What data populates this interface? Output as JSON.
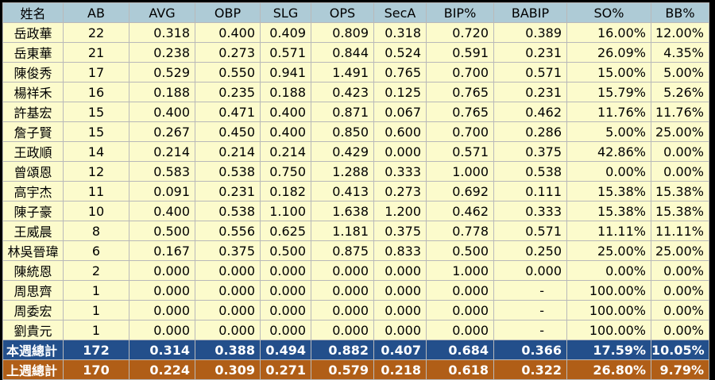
{
  "headers": [
    "姓名",
    "AB",
    "AVG",
    "OBP",
    "SLG",
    "OPS",
    "SecA",
    "BIP%",
    "BABIP",
    "SO%",
    "BB%"
  ],
  "rows": [
    [
      "岳政華",
      "22",
      "0.318",
      "0.400",
      "0.409",
      "0.809",
      "0.318",
      "0.720",
      "0.389",
      "16.00%",
      "12.00%"
    ],
    [
      "岳東華",
      "21",
      "0.238",
      "0.273",
      "0.571",
      "0.844",
      "0.524",
      "0.591",
      "0.231",
      "26.09%",
      "4.35%"
    ],
    [
      "陳俊秀",
      "17",
      "0.529",
      "0.550",
      "0.941",
      "1.491",
      "0.765",
      "0.700",
      "0.571",
      "15.00%",
      "5.00%"
    ],
    [
      "楊祥禾",
      "16",
      "0.188",
      "0.235",
      "0.188",
      "0.423",
      "0.125",
      "0.765",
      "0.231",
      "15.79%",
      "5.26%"
    ],
    [
      "許基宏",
      "15",
      "0.400",
      "0.471",
      "0.400",
      "0.871",
      "0.067",
      "0.765",
      "0.462",
      "11.76%",
      "11.76%"
    ],
    [
      "詹子賢",
      "15",
      "0.267",
      "0.450",
      "0.400",
      "0.850",
      "0.600",
      "0.700",
      "0.286",
      "5.00%",
      "25.00%"
    ],
    [
      "王政順",
      "14",
      "0.214",
      "0.214",
      "0.214",
      "0.429",
      "0.000",
      "0.571",
      "0.375",
      "42.86%",
      "0.00%"
    ],
    [
      "曾頌恩",
      "12",
      "0.583",
      "0.538",
      "0.750",
      "1.288",
      "0.333",
      "1.000",
      "0.538",
      "0.00%",
      "0.00%"
    ],
    [
      "高宇杰",
      "11",
      "0.091",
      "0.231",
      "0.182",
      "0.413",
      "0.273",
      "0.692",
      "0.111",
      "15.38%",
      "15.38%"
    ],
    [
      "陳子豪",
      "10",
      "0.400",
      "0.538",
      "1.100",
      "1.638",
      "1.200",
      "0.462",
      "0.333",
      "15.38%",
      "15.38%"
    ],
    [
      "王威晨",
      "8",
      "0.500",
      "0.556",
      "0.625",
      "1.181",
      "0.375",
      "0.778",
      "0.571",
      "11.11%",
      "11.11%"
    ],
    [
      "林吳晉瑋",
      "6",
      "0.167",
      "0.375",
      "0.500",
      "0.875",
      "0.833",
      "0.500",
      "0.250",
      "25.00%",
      "25.00%"
    ],
    [
      "陳統恩",
      "2",
      "0.000",
      "0.000",
      "0.000",
      "0.000",
      "0.000",
      "1.000",
      "0.000",
      "0.00%",
      "0.00%"
    ],
    [
      "周思齊",
      "1",
      "0.000",
      "0.000",
      "0.000",
      "0.000",
      "0.000",
      "0.000",
      "-",
      "100.00%",
      "0.00%"
    ],
    [
      "周委宏",
      "1",
      "0.000",
      "0.000",
      "0.000",
      "0.000",
      "0.000",
      "0.000",
      "-",
      "100.00%",
      "0.00%"
    ],
    [
      "劉貴元",
      "1",
      "0.000",
      "0.000",
      "0.000",
      "0.000",
      "0.000",
      "0.000",
      "-",
      "100.00%",
      "0.00%"
    ]
  ],
  "totals": [
    [
      "本週總計",
      "172",
      "0.314",
      "0.388",
      "0.494",
      "0.882",
      "0.407",
      "0.684",
      "0.366",
      "17.59%",
      "10.05%"
    ],
    [
      "上週總計",
      "170",
      "0.224",
      "0.309",
      "0.271",
      "0.579",
      "0.218",
      "0.618",
      "0.322",
      "26.80%",
      "9.79%"
    ]
  ],
  "colors": {
    "header_bg": "#aecbd6",
    "row_bg": "#fcfbcc",
    "this_week_bg": "#234f8b",
    "last_week_bg": "#b05e17"
  }
}
